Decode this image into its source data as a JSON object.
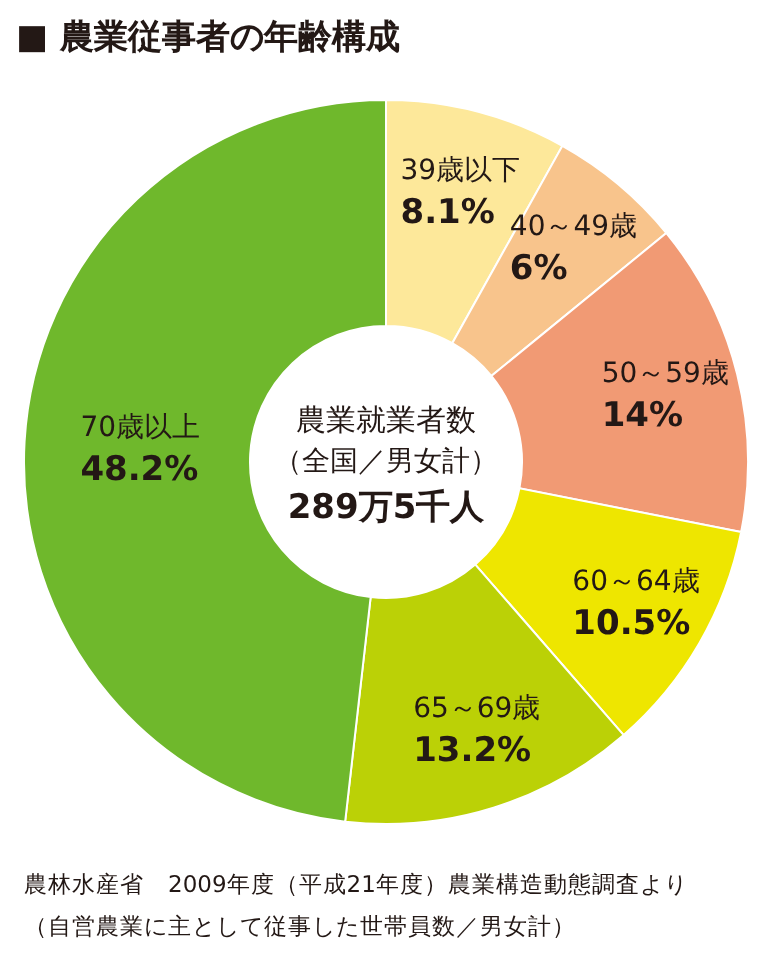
{
  "chart_data": {
    "type": "donut",
    "title": "■ 農業従事者の年齢構成",
    "categories": [
      "39歳以下",
      "40～49歳",
      "50～59歳",
      "60～64歳",
      "65～69歳",
      "70歳以上"
    ],
    "values": [
      8.1,
      6,
      14,
      10.5,
      13.2,
      48.2
    ],
    "value_labels": [
      "8.1%",
      "6%",
      "14%",
      "10.5%",
      "13.2%",
      "48.2%"
    ],
    "colors": [
      "#fde89a",
      "#f8c48c",
      "#f19a74",
      "#eee600",
      "#bbd106",
      "#6fb82c"
    ],
    "annotations": [
      "農業就業者数",
      "（全国／男女計）",
      "289万5千人",
      "農林水産省　2009年度（平成21年度）農業構造動態調査より",
      "（自営農業に主として従事した世帯員数／男女計）"
    ],
    "data_labels": false
  }
}
